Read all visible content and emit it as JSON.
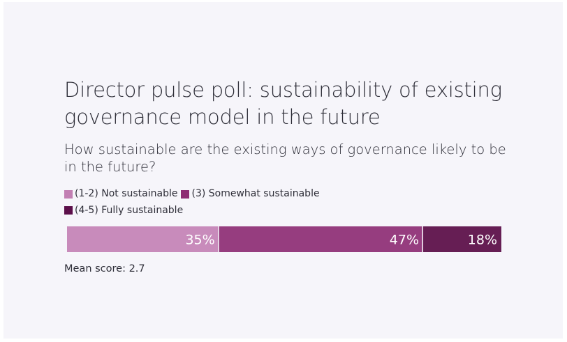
{
  "chart_data": {
    "type": "bar",
    "orientation": "horizontal-stacked",
    "title": "Director pulse poll: sustainability of existing governance model in the future",
    "subtitle": "How sustainable are the existing ways of governance likely to be in the future?",
    "series": [
      {
        "name": "(1-2) Not sustainable",
        "value": 35,
        "label": "35%",
        "color": "#c88bbb",
        "legend_color": "#c27fb3"
      },
      {
        "name": "(3) Somewhat sustainable",
        "value": 47,
        "label": "47%",
        "color": "#963d7f",
        "legend_color": "#8e2b73"
      },
      {
        "name": "(4-5) Fully sustainable",
        "value": 18,
        "label": "18%",
        "color": "#661e54",
        "legend_color": "#5c0f4a"
      }
    ],
    "xlim": [
      0,
      100
    ],
    "legend_position": "top-left",
    "footnote": "Mean score: 2.7"
  }
}
